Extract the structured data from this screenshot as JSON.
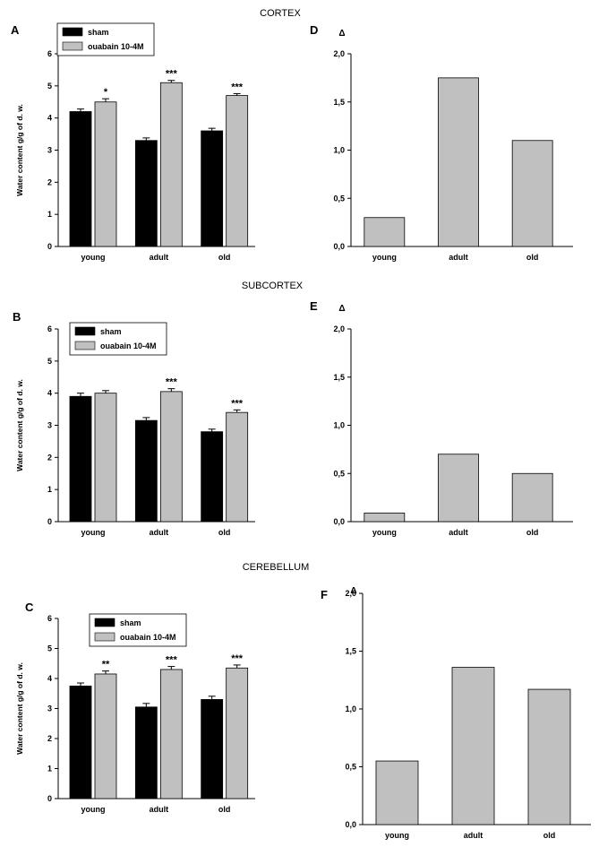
{
  "sections": [
    "CORTEX",
    "SUBCORTEX",
    "CEREBELLUM"
  ],
  "chart_data": [
    {
      "type": "bar",
      "panel": "A",
      "section": "CORTEX",
      "categories": [
        "young",
        "adult",
        "old"
      ],
      "ylabel": "Water content g/g of d. w.",
      "ylim": [
        0,
        6
      ],
      "yticks": [
        "0",
        "1",
        "2",
        "3",
        "4",
        "5",
        "6"
      ],
      "legend": {
        "placement": "top-left",
        "entries": [
          "sham",
          "ouabain 10-4M"
        ]
      },
      "colors": {
        "sham": "#000000",
        "ouabain": "#c0c0c0"
      },
      "series": [
        {
          "name": "sham",
          "values": [
            4.2,
            3.3,
            3.6
          ],
          "errors": [
            0.08,
            0.08,
            0.08
          ]
        },
        {
          "name": "ouabain 10-4M",
          "values": [
            4.5,
            5.1,
            4.7
          ],
          "errors": [
            0.1,
            0.07,
            0.06
          ]
        }
      ],
      "significance": [
        "*",
        "***",
        "***"
      ]
    },
    {
      "type": "bar",
      "panel": "D",
      "section": "CORTEX",
      "categories": [
        "young",
        "adult",
        "old"
      ],
      "ylabel": "Δ",
      "ylim": [
        0,
        2
      ],
      "yticks": [
        "0,0",
        "0,5",
        "1,0",
        "1,5",
        "2,0"
      ],
      "colors": {
        "bar": "#c0c0c0"
      },
      "values": [
        0.3,
        1.75,
        1.1
      ]
    },
    {
      "type": "bar",
      "panel": "B",
      "section": "SUBCORTEX",
      "categories": [
        "young",
        "adult",
        "old"
      ],
      "ylabel": "Water content g/g of d. w.",
      "ylim": [
        0,
        6
      ],
      "yticks": [
        "0",
        "1",
        "2",
        "3",
        "4",
        "5",
        "6"
      ],
      "legend": {
        "placement": "top-left",
        "entries": [
          "sham",
          "ouabain 10-4M"
        ]
      },
      "colors": {
        "sham": "#000000",
        "ouabain": "#c0c0c0"
      },
      "series": [
        {
          "name": "sham",
          "values": [
            3.9,
            3.15,
            2.8
          ],
          "errors": [
            0.1,
            0.09,
            0.08
          ]
        },
        {
          "name": "ouabain 10-4M",
          "values": [
            4.0,
            4.05,
            3.4
          ],
          "errors": [
            0.08,
            0.09,
            0.08
          ]
        }
      ],
      "significance": [
        "",
        "***",
        "***"
      ]
    },
    {
      "type": "bar",
      "panel": "E",
      "section": "SUBCORTEX",
      "categories": [
        "young",
        "adult",
        "old"
      ],
      "ylabel": "Δ",
      "ylim": [
        0,
        2
      ],
      "yticks": [
        "0,0",
        "0,5",
        "1,0",
        "1,5",
        "2,0"
      ],
      "colors": {
        "bar": "#c0c0c0"
      },
      "values": [
        0.09,
        0.7,
        0.5
      ]
    },
    {
      "type": "bar",
      "panel": "C",
      "section": "CEREBELLUM",
      "categories": [
        "young",
        "adult",
        "old"
      ],
      "ylabel": "Water content g/g of d. w.",
      "ylim": [
        0,
        6
      ],
      "yticks": [
        "0",
        "1",
        "2",
        "3",
        "4",
        "5",
        "6"
      ],
      "legend": {
        "placement": "top-center",
        "entries": [
          "sham",
          "ouabain 10-4M"
        ]
      },
      "colors": {
        "sham": "#000000",
        "ouabain": "#c0c0c0"
      },
      "series": [
        {
          "name": "sham",
          "values": [
            3.75,
            3.05,
            3.3
          ],
          "errors": [
            0.1,
            0.12,
            0.11
          ]
        },
        {
          "name": "ouabain 10-4M",
          "values": [
            4.15,
            4.3,
            4.35
          ],
          "errors": [
            0.1,
            0.1,
            0.1
          ]
        }
      ],
      "significance": [
        "**",
        "***",
        "***"
      ]
    },
    {
      "type": "bar",
      "panel": "F",
      "section": "CEREBELLUM",
      "categories": [
        "young",
        "adult",
        "old"
      ],
      "ylabel": "Δ",
      "ylim": [
        0,
        2
      ],
      "yticks": [
        "0,0",
        "0,5",
        "1,0",
        "1,5",
        "2,0"
      ],
      "colors": {
        "bar": "#c0c0c0"
      },
      "values": [
        0.55,
        1.36,
        1.17
      ]
    }
  ]
}
